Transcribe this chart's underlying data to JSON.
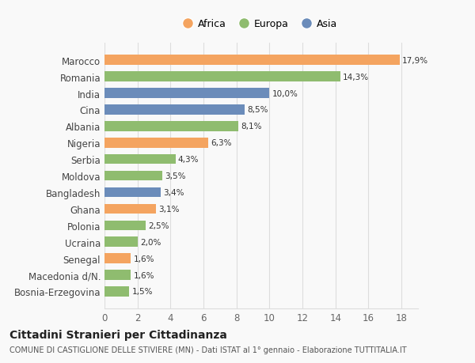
{
  "categories": [
    "Bosnia-Erzegovina",
    "Macedonia d/N.",
    "Senegal",
    "Ucraina",
    "Polonia",
    "Ghana",
    "Bangladesh",
    "Moldova",
    "Serbia",
    "Nigeria",
    "Albania",
    "Cina",
    "India",
    "Romania",
    "Marocco"
  ],
  "values": [
    1.5,
    1.6,
    1.6,
    2.0,
    2.5,
    3.1,
    3.4,
    3.5,
    4.3,
    6.3,
    8.1,
    8.5,
    10.0,
    14.3,
    17.9
  ],
  "labels": [
    "1,5%",
    "1,6%",
    "1,6%",
    "2,0%",
    "2,5%",
    "3,1%",
    "3,4%",
    "3,5%",
    "4,3%",
    "6,3%",
    "8,1%",
    "8,5%",
    "10,0%",
    "14,3%",
    "17,9%"
  ],
  "colors": [
    "#8fbc6f",
    "#8fbc6f",
    "#f4a460",
    "#8fbc6f",
    "#8fbc6f",
    "#f4a460",
    "#6b8cba",
    "#8fbc6f",
    "#8fbc6f",
    "#f4a460",
    "#8fbc6f",
    "#6b8cba",
    "#6b8cba",
    "#8fbc6f",
    "#f4a460"
  ],
  "legend": [
    {
      "label": "Africa",
      "color": "#f4a460"
    },
    {
      "label": "Europa",
      "color": "#8fbc6f"
    },
    {
      "label": "Asia",
      "color": "#6b8cba"
    }
  ],
  "xlim": [
    0,
    19
  ],
  "xticks": [
    0,
    2,
    4,
    6,
    8,
    10,
    12,
    14,
    16,
    18
  ],
  "title": "Cittadini Stranieri per Cittadinanza",
  "subtitle": "COMUNE DI CASTIGLIONE DELLE STIVIERE (MN) - Dati ISTAT al 1° gennaio - Elaborazione TUTTITALIA.IT",
  "background_color": "#f9f9f9",
  "grid_color": "#dddddd"
}
